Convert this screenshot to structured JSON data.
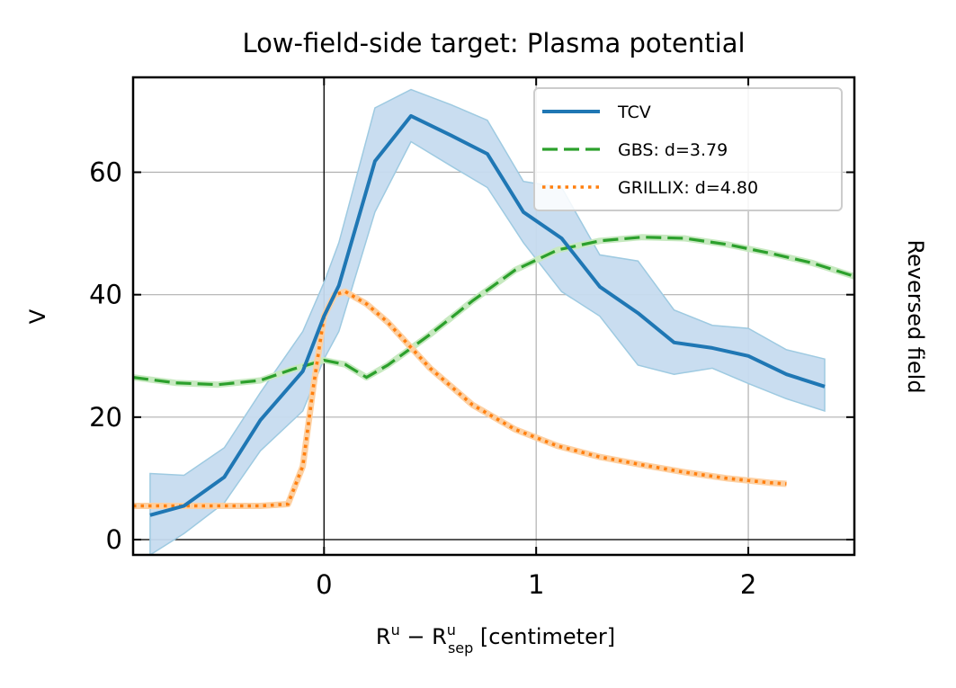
{
  "chart_data": {
    "type": "line",
    "title": "Low-field-side target: Plasma potential",
    "xlabel": {
      "base": "R",
      "sup1": "u",
      "minus": " − ",
      "base2": "R",
      "sup2": "u",
      "sub2": "sep",
      "unit": " [centimeter]"
    },
    "ylabel": "V",
    "side_label": "Reversed field",
    "xlim": [
      -0.9,
      2.5
    ],
    "ylim": [
      -2.5,
      75.5
    ],
    "xticks": [
      0,
      1,
      2
    ],
    "yticks": [
      0,
      20,
      40,
      60
    ],
    "grid": true,
    "legend_position": "upper right",
    "colors": {
      "tcv": "#1f77b4",
      "tcv_band": "#c6dbef",
      "gbs": "#2ca02c",
      "grillix": "#ff7f0e"
    },
    "series": [
      {
        "name": "TCV",
        "style": "solid",
        "x": [
          -0.82,
          -0.66,
          -0.47,
          -0.3,
          -0.1,
          0.0,
          0.07,
          0.24,
          0.41,
          0.6,
          0.77,
          0.94,
          1.12,
          1.3,
          1.48,
          1.65,
          1.83,
          2.0,
          2.18,
          2.36
        ],
        "y": [
          4.0,
          5.5,
          10.2,
          19.5,
          27.5,
          36.5,
          41.5,
          61.8,
          69.2,
          66.0,
          63.0,
          53.5,
          49.2,
          41.3,
          37.0,
          32.2,
          31.3,
          30.0,
          27.0,
          25.0
        ],
        "lower": [
          -2.5,
          1.0,
          6.0,
          14.5,
          21.0,
          29.5,
          34.0,
          53.5,
          65.0,
          61.0,
          57.5,
          48.5,
          40.5,
          36.5,
          28.5,
          27.0,
          28.0,
          25.5,
          23.0,
          21.0
        ],
        "upper": [
          10.8,
          10.5,
          15.0,
          24.0,
          34.0,
          42.0,
          48.5,
          70.5,
          73.5,
          71.0,
          68.5,
          58.5,
          57.5,
          46.5,
          45.5,
          37.5,
          35.0,
          34.5,
          31.0,
          29.5
        ]
      },
      {
        "name": "GBS: d=3.79",
        "style": "dashed",
        "x": [
          -0.9,
          -0.7,
          -0.5,
          -0.3,
          -0.15,
          0.0,
          0.1,
          0.2,
          0.3,
          0.5,
          0.7,
          0.9,
          1.1,
          1.3,
          1.5,
          1.7,
          1.9,
          2.1,
          2.3,
          2.5
        ],
        "y": [
          26.5,
          25.6,
          25.3,
          26.0,
          27.8,
          29.3,
          28.6,
          26.5,
          28.5,
          33.5,
          39.0,
          44.0,
          47.3,
          48.8,
          49.4,
          49.2,
          48.2,
          46.8,
          45.2,
          43.0
        ]
      },
      {
        "name": "GRILLIX: d=4.80",
        "style": "dotted",
        "x": [
          -0.9,
          -0.7,
          -0.5,
          -0.3,
          -0.17,
          -0.1,
          -0.05,
          0.0,
          0.05,
          0.1,
          0.2,
          0.3,
          0.5,
          0.7,
          0.9,
          1.1,
          1.3,
          1.5,
          1.7,
          1.9,
          2.1,
          2.18
        ],
        "y": [
          5.5,
          5.5,
          5.5,
          5.5,
          5.8,
          12.0,
          25.0,
          36.5,
          40.0,
          40.5,
          38.5,
          35.5,
          28.0,
          22.0,
          18.0,
          15.3,
          13.5,
          12.2,
          11.0,
          10.0,
          9.3,
          9.1
        ]
      }
    ]
  }
}
